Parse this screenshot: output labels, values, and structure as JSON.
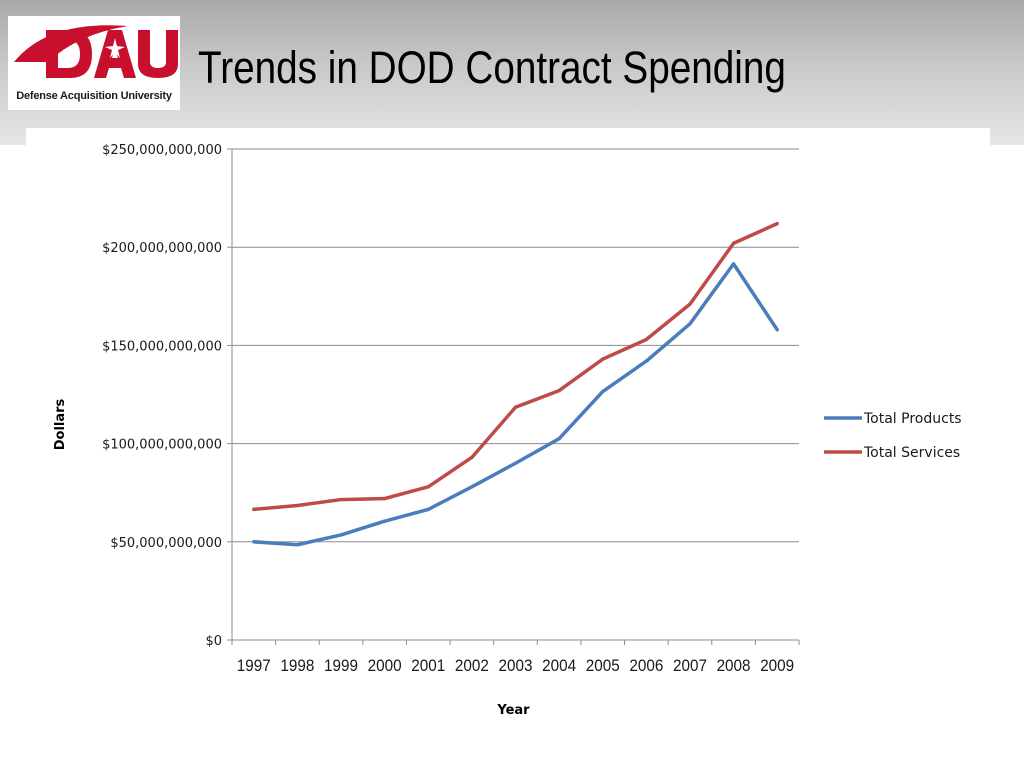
{
  "slide": {
    "title": "Trends in DOD Contract Spending",
    "logo": {
      "text": "DAU",
      "caption": "Defense Acquisition University",
      "color": "#c8102e"
    }
  },
  "chart_data": {
    "type": "line",
    "title": "",
    "xlabel": "Year",
    "ylabel": "Dollars",
    "categories": [
      "1997",
      "1998",
      "1999",
      "2000",
      "2001",
      "2002",
      "2003",
      "2004",
      "2005",
      "2006",
      "2007",
      "2008",
      "2009"
    ],
    "ylim": [
      0,
      250000000000
    ],
    "yticks": [
      {
        "value": 0,
        "label": "$0"
      },
      {
        "value": 50000000000,
        "label": "$50,000,000,000"
      },
      {
        "value": 100000000000,
        "label": "$100,000,000,000"
      },
      {
        "value": 150000000000,
        "label": "$150,000,000,000"
      },
      {
        "value": 200000000000,
        "label": "$200,000,000,000"
      },
      {
        "value": 250000000000,
        "label": "$250,000,000,000"
      }
    ],
    "grid": true,
    "legend_position": "right",
    "series": [
      {
        "name": "Total Products",
        "color": "#4a7ebb",
        "values": [
          50000000000,
          48500000000,
          53500000000,
          60500000000,
          66500000000,
          78000000000,
          90000000000,
          102500000000,
          126500000000,
          142000000000,
          161000000000,
          191500000000,
          158000000000
        ]
      },
      {
        "name": "Total Services",
        "color": "#be4b48",
        "values": [
          66500000000,
          68500000000,
          71500000000,
          72000000000,
          78000000000,
          93000000000,
          118500000000,
          127000000000,
          143000000000,
          153000000000,
          171000000000,
          202000000000,
          212000000000
        ]
      }
    ]
  }
}
